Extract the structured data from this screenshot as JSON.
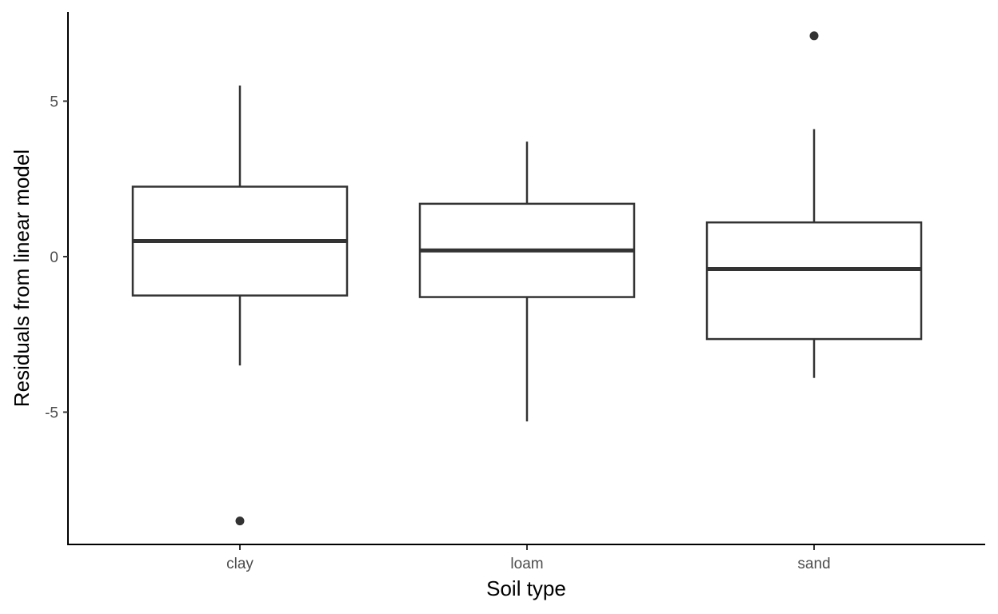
{
  "chart_data": {
    "type": "boxplot",
    "title": "",
    "xlabel": "Soil type",
    "ylabel": "Residuals from linear model",
    "categories": [
      "clay",
      "loam",
      "sand"
    ],
    "boxes": [
      {
        "category": "clay",
        "whisker_low": -3.5,
        "q1": -1.25,
        "median": 0.5,
        "q3": 2.25,
        "whisker_high": 5.5,
        "outliers": [
          -8.5
        ]
      },
      {
        "category": "loam",
        "whisker_low": -5.3,
        "q1": -1.3,
        "median": 0.2,
        "q3": 1.7,
        "whisker_high": 3.7,
        "outliers": []
      },
      {
        "category": "sand",
        "whisker_low": -3.9,
        "q1": -2.65,
        "median": -0.4,
        "q3": 1.1,
        "whisker_high": 4.1,
        "outliers": [
          7.1
        ]
      }
    ],
    "yticks": [
      5,
      0,
      -5
    ],
    "ytick_labels": [
      "5",
      "0",
      "-5"
    ],
    "ylim": [
      -9.3,
      7.8
    ],
    "grid": false,
    "legend": "none",
    "colors": {
      "box_line": "#333333",
      "box_fill": "#ffffff",
      "axis": "#000000"
    }
  }
}
